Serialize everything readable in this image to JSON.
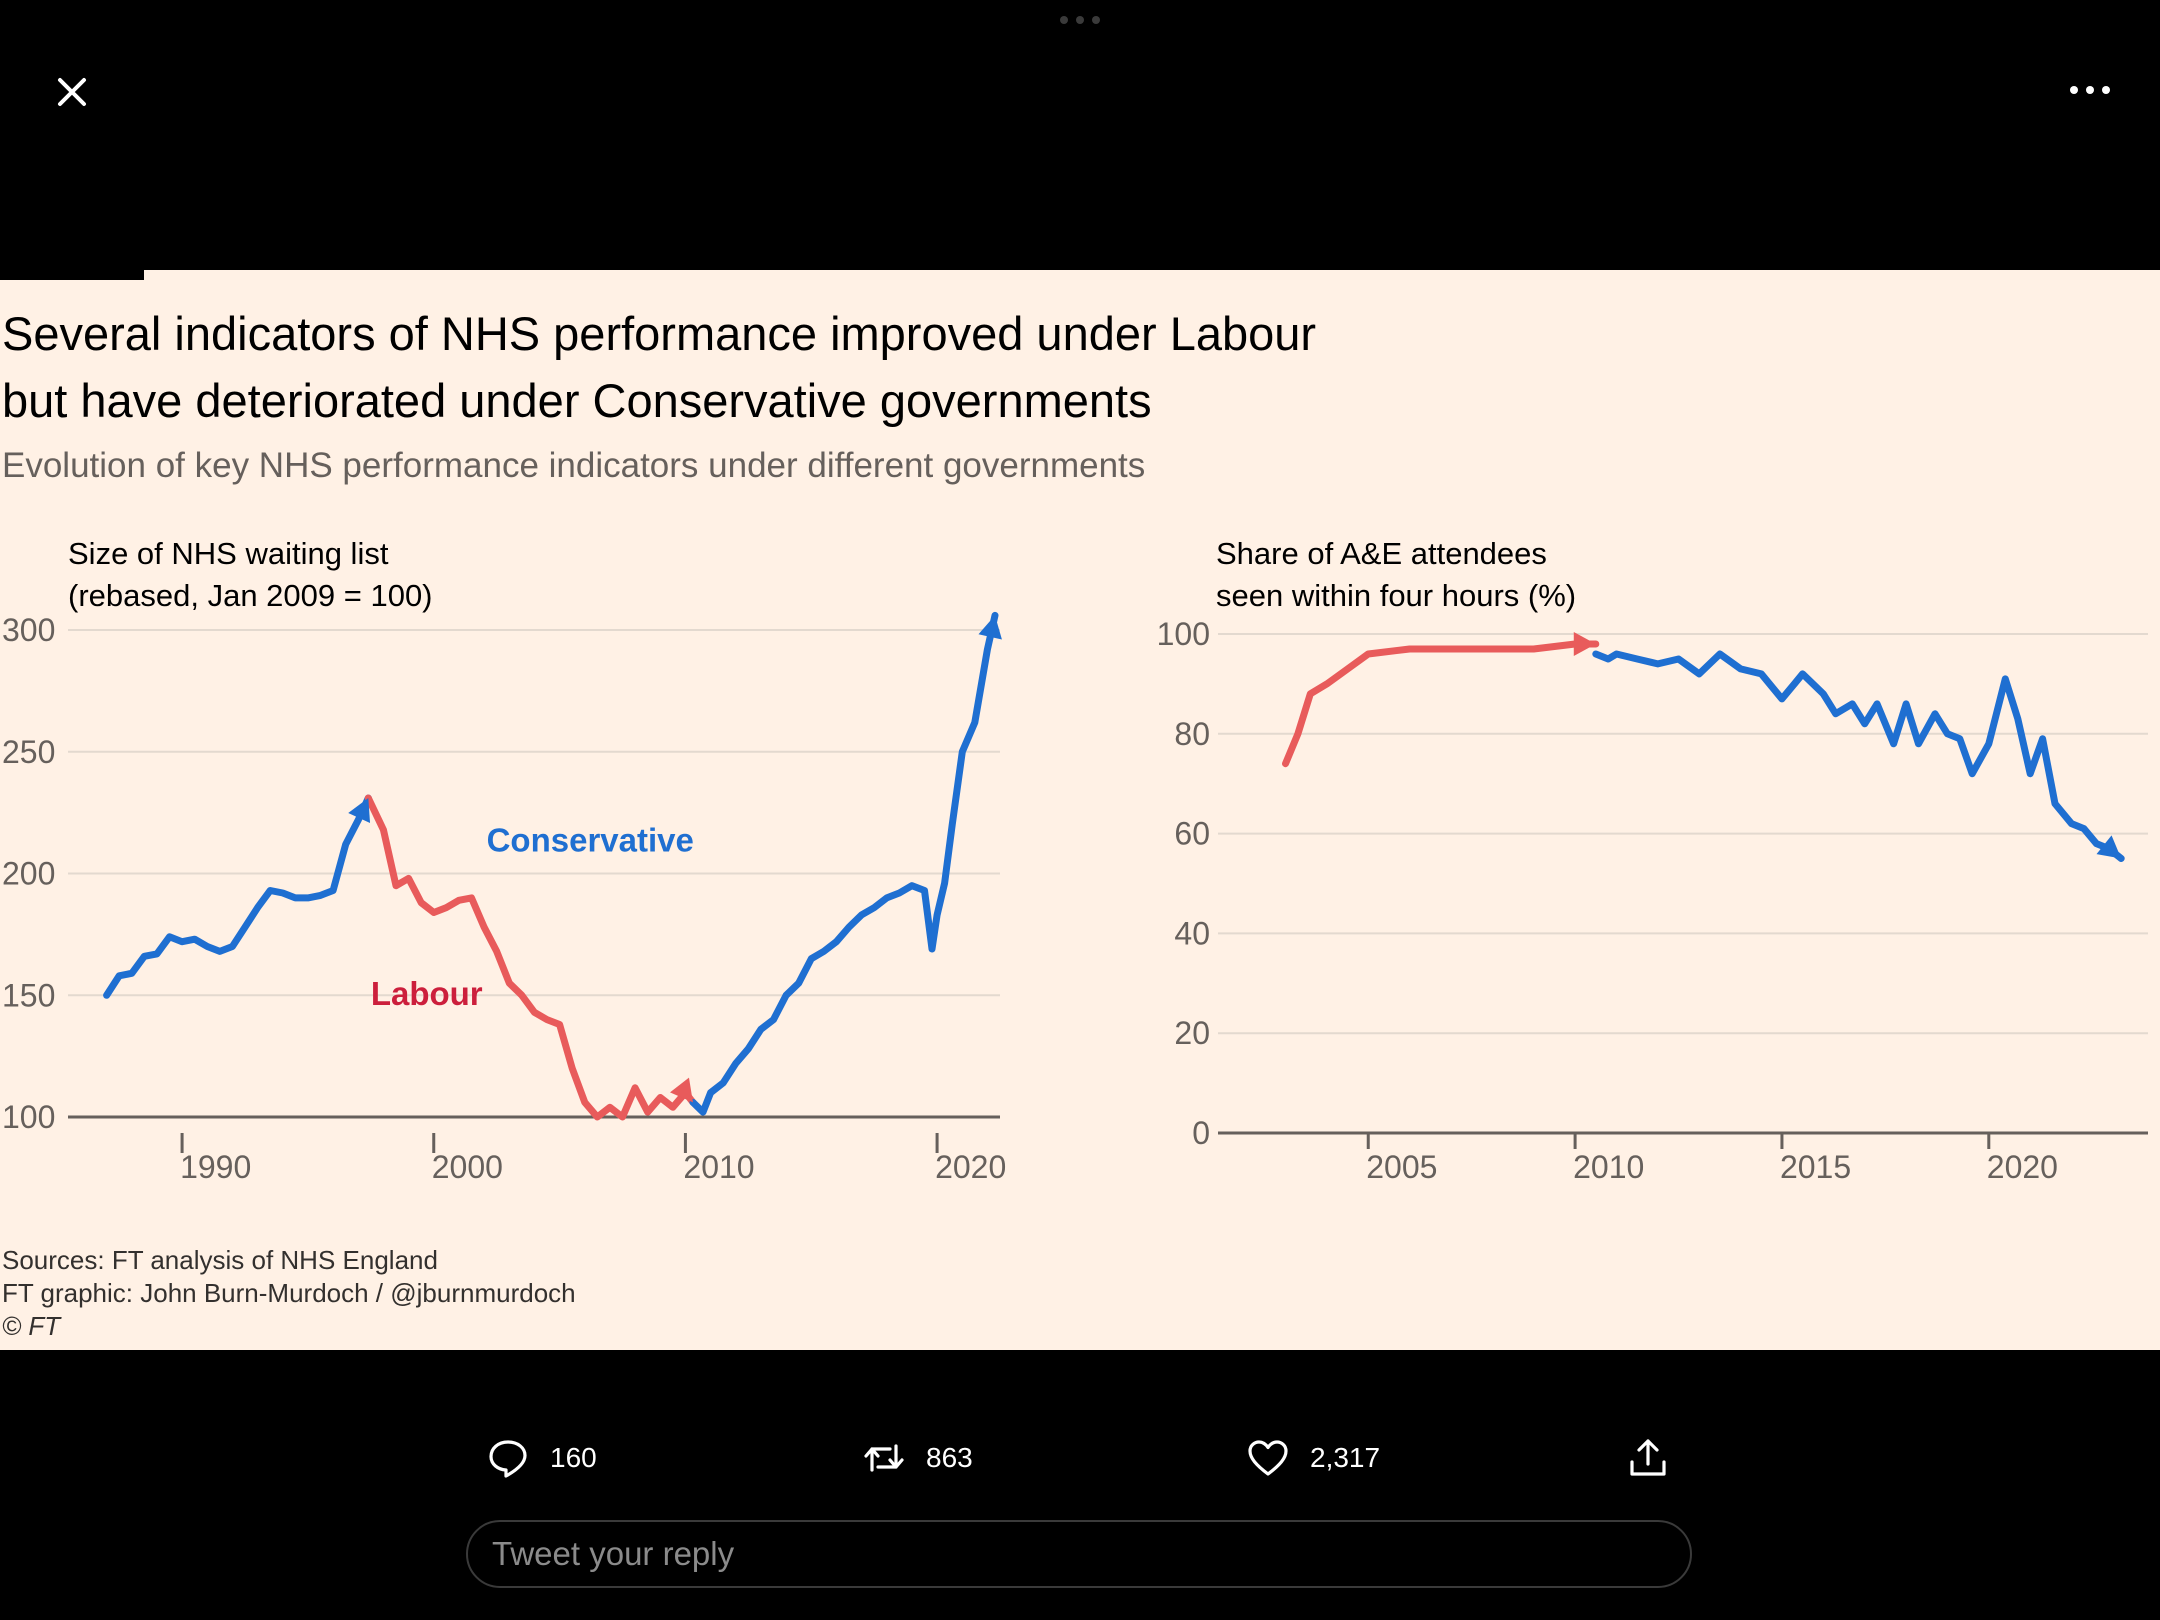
{
  "viewer": {
    "close_icon": "close-icon",
    "more_icon": "more-horizontal-icon",
    "page_indicator_icon": "page-dots-icon"
  },
  "graphic": {
    "headline_line1": "Several indicators of NHS performance improved under Labour",
    "headline_line2": "but have deteriorated under Conservative governments",
    "subtitle": "Evolution of key NHS performance indicators under different governments",
    "sources": "Sources: FT analysis of NHS England",
    "credit": "FT graphic: John Burn-Murdoch / @jburnmurdoch",
    "copyright": "© FT",
    "colors": {
      "background": "#fff1e5",
      "conservative": "#1f6fd1",
      "labour": "#e85b5b",
      "labour_label": "#cc1f3c",
      "grid": "#e3d9cf"
    }
  },
  "chart_data": [
    {
      "type": "line",
      "title": "Size of NHS waiting list\n(rebased, Jan 2009 = 100)",
      "title_lines": [
        "Size of NHS waiting list",
        "(rebased, Jan 2009 = 100)"
      ],
      "xlim": [
        1986.5,
        2022.5
      ],
      "ylim": [
        100,
        300
      ],
      "yticks": [
        100,
        150,
        200,
        250,
        300
      ],
      "xticks": [
        1990,
        2000,
        2010,
        2020
      ],
      "grid": true,
      "series_labels": [
        {
          "text": "Conservative",
          "x": 2002.1,
          "y": 209,
          "color": "#1f6fd1"
        },
        {
          "text": "Labour",
          "x": 1997.5,
          "y": 146,
          "color": "#cc1f3c"
        }
      ],
      "series": [
        {
          "name": "Conservative",
          "x": [
            1987.0,
            1987.5,
            1988.0,
            1988.5,
            1989.0,
            1989.5,
            1990.0,
            1990.5,
            1991.0,
            1991.5,
            1992.0,
            1992.5,
            1993.0,
            1993.5,
            1994.0,
            1994.5,
            1995.0,
            1995.5,
            1996.0,
            1996.5,
            1997.0,
            1997.4
          ],
          "values": [
            150,
            158,
            159,
            166,
            167,
            174,
            172,
            173,
            170,
            168,
            170,
            178,
            186,
            193,
            192,
            190,
            190,
            191,
            193,
            212,
            222,
            231
          ]
        },
        {
          "name": "Labour",
          "x": [
            1997.4,
            1998.0,
            1998.5,
            1999.0,
            1999.5,
            2000.0,
            2000.5,
            2001.0,
            2001.5,
            2002.0,
            2002.5,
            2003.0,
            2003.5,
            2004.0,
            2004.5,
            2005.0,
            2005.5,
            2006.0,
            2006.5,
            2007.0,
            2007.5,
            2008.0,
            2008.5,
            2009.0,
            2009.5,
            2010.0,
            2010.3
          ],
          "values": [
            231,
            218,
            195,
            198,
            188,
            184,
            186,
            189,
            190,
            178,
            168,
            155,
            150,
            143,
            140,
            138,
            120,
            106,
            100,
            104,
            100,
            112,
            102,
            108,
            104,
            110,
            106
          ]
        },
        {
          "name": "Conservative",
          "x": [
            2010.3,
            2010.7,
            2011.0,
            2011.5,
            2012.0,
            2012.5,
            2013.0,
            2013.5,
            2014.0,
            2014.5,
            2015.0,
            2015.5,
            2016.0,
            2016.5,
            2017.0,
            2017.5,
            2018.0,
            2018.5,
            2019.0,
            2019.5,
            2019.8,
            2020.0,
            2020.3,
            2020.6,
            2021.0,
            2021.5,
            2022.0,
            2022.3
          ],
          "values": [
            106,
            102,
            110,
            114,
            122,
            128,
            136,
            140,
            150,
            155,
            165,
            168,
            172,
            178,
            183,
            186,
            190,
            192,
            195,
            193,
            169,
            183,
            196,
            220,
            250,
            262,
            292,
            306
          ]
        }
      ]
    },
    {
      "type": "line",
      "title": "Share of A&E attendees\nseen within four hours (%)",
      "title_lines": [
        "Share of A&E attendees",
        "seen within four hours (%)"
      ],
      "xlim": [
        2001.9,
        2023.8
      ],
      "ylim": [
        0,
        100
      ],
      "yticks": [
        0,
        20,
        40,
        60,
        80,
        100
      ],
      "xticks": [
        2005,
        2010,
        2015,
        2020
      ],
      "grid": true,
      "series": [
        {
          "name": "Labour",
          "x": [
            2003.0,
            2003.3,
            2003.6,
            2004.0,
            2004.5,
            2005.0,
            2006.0,
            2007.0,
            2008.0,
            2009.0,
            2010.0,
            2010.5
          ],
          "values": [
            74,
            80,
            88,
            90,
            93,
            96,
            97,
            97,
            97,
            97,
            98,
            98
          ]
        },
        {
          "name": "Conservative",
          "x": [
            2010.5,
            2010.8,
            2011.0,
            2011.5,
            2012.0,
            2012.5,
            2013.0,
            2013.5,
            2014.0,
            2014.5,
            2015.0,
            2015.3,
            2015.5,
            2016.0,
            2016.3,
            2016.7,
            2017.0,
            2017.3,
            2017.7,
            2018.0,
            2018.3,
            2018.7,
            2019.0,
            2019.3,
            2019.6,
            2020.0,
            2020.4,
            2020.7,
            2021.0,
            2021.3,
            2021.6,
            2022.0,
            2022.3,
            2022.6,
            2022.9,
            2023.2
          ],
          "values": [
            96,
            95,
            96,
            95,
            94,
            95,
            92,
            96,
            93,
            92,
            87,
            90,
            92,
            88,
            84,
            86,
            82,
            86,
            78,
            86,
            78,
            84,
            80,
            79,
            72,
            78,
            91,
            83,
            72,
            79,
            66,
            62,
            61,
            58,
            57,
            55
          ]
        }
      ]
    }
  ],
  "actions": {
    "reply_count": "160",
    "retweet_count": "863",
    "like_count": "2,317"
  },
  "reply": {
    "placeholder": "Tweet your reply"
  }
}
